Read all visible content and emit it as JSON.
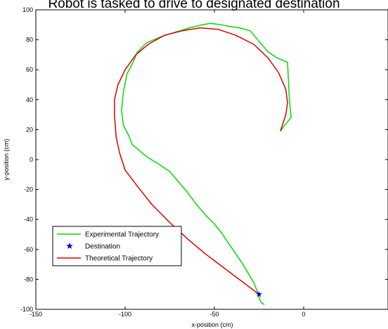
{
  "chart_data": {
    "type": "line",
    "title": "Robot is tasked to drive to designated destination",
    "xlabel": "x-position (cm)",
    "ylabel": "y-position (cm)",
    "xlim": [
      -150,
      0
    ],
    "ylim": [
      -100,
      100
    ],
    "xticks": [
      -150,
      -100,
      -50,
      0
    ],
    "yticks": [
      -100,
      -80,
      -60,
      -40,
      -20,
      0,
      20,
      40,
      60,
      80,
      100
    ],
    "grid": false,
    "legend_position": "lower-left",
    "series": [
      {
        "name": "Experimental Trajectory",
        "color": "#00dd00",
        "points": [
          [
            -22,
            -97
          ],
          [
            -24,
            -95
          ],
          [
            -25,
            -92
          ],
          [
            -26,
            -88
          ],
          [
            -28,
            -82
          ],
          [
            -31,
            -76
          ],
          [
            -34,
            -70
          ],
          [
            -38,
            -63
          ],
          [
            -42,
            -56
          ],
          [
            -46,
            -49
          ],
          [
            -50,
            -43
          ],
          [
            -55,
            -37
          ],
          [
            -60,
            -30
          ],
          [
            -65,
            -22
          ],
          [
            -70,
            -15
          ],
          [
            -75,
            -8
          ],
          [
            -80,
            -4
          ],
          [
            -84,
            -1
          ],
          [
            -88,
            2
          ],
          [
            -92,
            6
          ],
          [
            -96,
            10
          ],
          [
            -98,
            16
          ],
          [
            -101,
            23
          ],
          [
            -102,
            33
          ],
          [
            -101,
            45
          ],
          [
            -99,
            57
          ],
          [
            -96,
            64
          ],
          [
            -93,
            72
          ],
          [
            -88,
            78
          ],
          [
            -80,
            82
          ],
          [
            -72,
            85
          ],
          [
            -64,
            88
          ],
          [
            -57,
            90
          ],
          [
            -52,
            91
          ],
          [
            -46,
            90
          ],
          [
            -42,
            89
          ],
          [
            -36,
            88
          ],
          [
            -30,
            86
          ],
          [
            -25,
            79
          ],
          [
            -20,
            72
          ],
          [
            -15,
            68
          ],
          [
            -9,
            65
          ],
          [
            -8,
            40
          ],
          [
            -7,
            28
          ],
          [
            -10,
            24
          ],
          [
            -13,
            19
          ]
        ]
      },
      {
        "name": "Theoretical Trajectory",
        "color": "#dd0000",
        "points": [
          [
            -25,
            -90
          ],
          [
            -35,
            -81
          ],
          [
            -45,
            -72
          ],
          [
            -55,
            -63
          ],
          [
            -65,
            -53
          ],
          [
            -75,
            -42
          ],
          [
            -85,
            -30
          ],
          [
            -93,
            -18
          ],
          [
            -100,
            -7
          ],
          [
            -103,
            4
          ],
          [
            -105,
            15
          ],
          [
            -106,
            30
          ],
          [
            -106,
            40
          ],
          [
            -104,
            50
          ],
          [
            -100,
            60
          ],
          [
            -94,
            70
          ],
          [
            -87,
            77
          ],
          [
            -78,
            83
          ],
          [
            -68,
            86
          ],
          [
            -58,
            88
          ],
          [
            -48,
            87
          ],
          [
            -38,
            83
          ],
          [
            -28,
            77
          ],
          [
            -20,
            68
          ],
          [
            -14,
            58
          ],
          [
            -10,
            47
          ],
          [
            -9,
            38
          ],
          [
            -10,
            30
          ],
          [
            -13,
            19
          ]
        ]
      },
      {
        "name": "Destination",
        "color": "#0000dd",
        "marker": "star",
        "points": [
          [
            -25,
            -90
          ]
        ]
      }
    ]
  }
}
